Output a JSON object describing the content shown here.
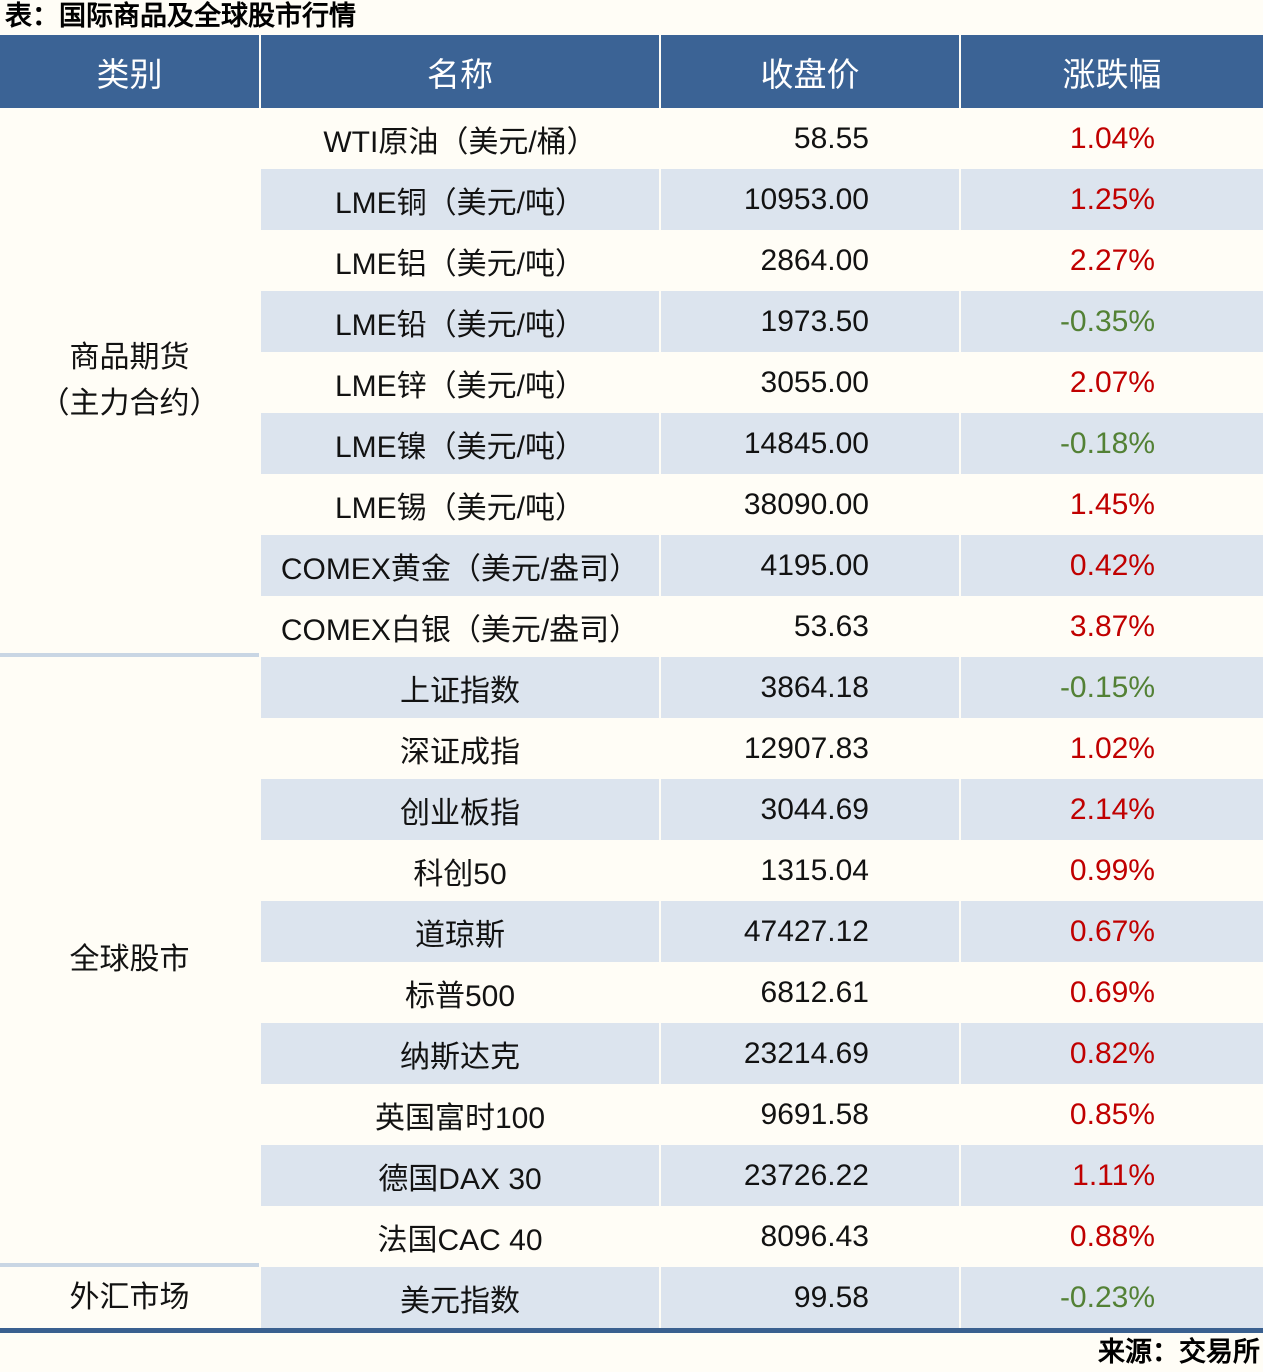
{
  "colors": {
    "page_bg": "#fffdf6",
    "header_bg": "#3b6395",
    "row_alt": "#dce4ee",
    "up_red": "#c00000",
    "down_green": "#538135",
    "divider": "#c9d6e4",
    "bottom_border": "#3a608f"
  },
  "chart_data": {
    "type": "table",
    "title": "表：国际商品及全球股市行情",
    "source": "来源：交易所",
    "columns": [
      "类别",
      "名称",
      "收盘价",
      "涨跌幅"
    ],
    "groups": [
      {
        "category": "商品期货（主力合约）",
        "category_lines": [
          "商品期货",
          "（主力合约）"
        ],
        "rows": [
          {
            "name": "WTI原油（美元/桶）",
            "close": "58.55",
            "change": "1.04%"
          },
          {
            "name": "LME铜（美元/吨）",
            "close": "10953.00",
            "change": "1.25%"
          },
          {
            "name": "LME铝（美元/吨）",
            "close": "2864.00",
            "change": "2.27%"
          },
          {
            "name": "LME铅（美元/吨）",
            "close": "1973.50",
            "change": "-0.35%"
          },
          {
            "name": "LME锌（美元/吨）",
            "close": "3055.00",
            "change": "2.07%"
          },
          {
            "name": "LME镍（美元/吨）",
            "close": "14845.00",
            "change": "-0.18%"
          },
          {
            "name": "LME锡（美元/吨）",
            "close": "38090.00",
            "change": "1.45%"
          },
          {
            "name": "COMEX黄金（美元/盎司）",
            "close": "4195.00",
            "change": "0.42%"
          },
          {
            "name": "COMEX白银（美元/盎司）",
            "close": "53.63",
            "change": "3.87%"
          }
        ]
      },
      {
        "category": "全球股市",
        "category_lines": [
          "全球股市"
        ],
        "rows": [
          {
            "name": "上证指数",
            "close": "3864.18",
            "change": "-0.15%"
          },
          {
            "name": "深证成指",
            "close": "12907.83",
            "change": "1.02%"
          },
          {
            "name": "创业板指",
            "close": "3044.69",
            "change": "2.14%"
          },
          {
            "name": "科创50",
            "close": "1315.04",
            "change": "0.99%"
          },
          {
            "name": "道琼斯",
            "close": "47427.12",
            "change": "0.67%"
          },
          {
            "name": "标普500",
            "close": "6812.61",
            "change": "0.69%"
          },
          {
            "name": "纳斯达克",
            "close": "23214.69",
            "change": "0.82%"
          },
          {
            "name": "英国富时100",
            "close": "9691.58",
            "change": "0.85%"
          },
          {
            "name": "德国DAX 30",
            "close": "23726.22",
            "change": "1.11%"
          },
          {
            "name": "法国CAC 40",
            "close": "8096.43",
            "change": "0.88%"
          }
        ]
      },
      {
        "category": "外汇市场",
        "category_lines": [
          "外汇市场"
        ],
        "rows": [
          {
            "name": "美元指数",
            "close": "99.58",
            "change": "-0.23%"
          }
        ]
      }
    ]
  }
}
